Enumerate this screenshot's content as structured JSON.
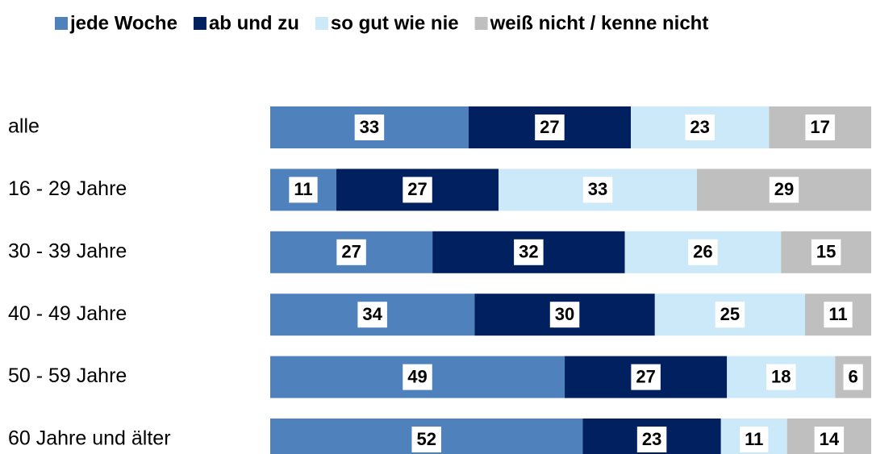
{
  "chart_data": {
    "type": "stacked-bar",
    "orientation": "horizontal",
    "categories": [
      "alle",
      "16 - 29 Jahre",
      "30 - 39 Jahre",
      "40 - 49 Jahre",
      "50 - 59 Jahre",
      "60 Jahre und älter"
    ],
    "series": [
      {
        "name": "jede Woche",
        "color": "#4f81bd",
        "values": [
          33,
          11,
          27,
          34,
          49,
          52
        ]
      },
      {
        "name": "ab und zu",
        "color": "#002060",
        "values": [
          27,
          27,
          32,
          30,
          27,
          23
        ]
      },
      {
        "name": "so gut wie nie",
        "color": "#cce9fa",
        "values": [
          23,
          33,
          26,
          25,
          18,
          11
        ]
      },
      {
        "name": "weiß nicht / kenne nicht",
        "color": "#bfbfbf",
        "values": [
          17,
          29,
          15,
          11,
          6,
          14
        ]
      }
    ],
    "xlim": [
      0,
      100
    ],
    "legend": "top"
  }
}
